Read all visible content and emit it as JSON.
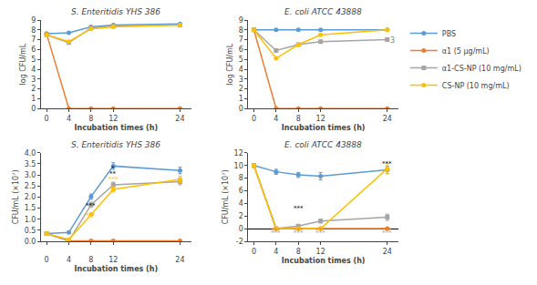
{
  "chart_data": [
    {
      "type": "line",
      "title": "S. Enteritidis YHS 386",
      "xlabel": "Incubation times (h)",
      "ylabel": "log CFU/mL",
      "x": [
        0,
        4,
        8,
        12,
        24
      ],
      "xlim": [
        -1,
        26
      ],
      "xticks": [
        0,
        4,
        8,
        12,
        24
      ],
      "ylim": [
        0,
        9
      ],
      "yticks": [
        0,
        1,
        2,
        3,
        4,
        5,
        6,
        7,
        8,
        9
      ],
      "grid": false,
      "series": [
        {
          "name": "PBS",
          "color": "#5B9BD5",
          "marker": "circle",
          "values": [
            7.6,
            7.7,
            8.3,
            8.5,
            8.6
          ]
        },
        {
          "name": "α1 (5 μg/mL)",
          "color": "#ED7D31",
          "marker": "circle",
          "values": [
            7.6,
            0.0,
            0.0,
            0.0,
            0.0
          ]
        },
        {
          "name": "α1-CS-NP (10 mg/mL)",
          "color": "#A5A5A5",
          "marker": "square",
          "values": [
            7.5,
            6.7,
            8.2,
            8.4,
            8.5
          ]
        },
        {
          "name": "CS-NP (10 mg/mL)",
          "color": "#FFC000",
          "marker": "circle",
          "values": [
            7.5,
            6.8,
            8.1,
            8.3,
            8.5
          ]
        }
      ]
    },
    {
      "type": "line",
      "title": "E. coli ATCC 43888",
      "xlabel": "Incubation times (h)",
      "ylabel": "log CFU/mL",
      "x": [
        0,
        4,
        8,
        12,
        24
      ],
      "xlim": [
        -1,
        26
      ],
      "xticks": [
        0,
        4,
        8,
        12,
        24
      ],
      "ylim": [
        0,
        9
      ],
      "yticks": [
        0,
        1,
        2,
        3,
        4,
        5,
        6,
        7,
        8,
        9
      ],
      "grid": false,
      "legend": "right",
      "series": [
        {
          "name": "PBS",
          "color": "#5B9BD5",
          "marker": "circle",
          "values": [
            8.0,
            8.0,
            8.0,
            8.0,
            8.0
          ]
        },
        {
          "name": "α1 (5 μg/mL)",
          "color": "#ED7D31",
          "marker": "circle",
          "values": [
            8.0,
            0.0,
            0.0,
            0.0,
            0.0
          ]
        },
        {
          "name": "α1-CS-NP (10 mg/mL)",
          "color": "#A5A5A5",
          "marker": "square",
          "values": [
            8.0,
            5.9,
            6.5,
            6.8,
            7.0
          ]
        },
        {
          "name": "CS-NP (10 mg/mL)",
          "color": "#FFC000",
          "marker": "circle",
          "values": [
            8.0,
            5.1,
            6.5,
            7.5,
            8.0
          ]
        }
      ],
      "annotations": [
        {
          "text": "3",
          "x": 24.2,
          "y": 6.9,
          "color": "gray"
        }
      ]
    },
    {
      "type": "line",
      "title": "S. Enteritidis YHS 386",
      "xlabel": "Incubation times (h)",
      "ylabel": "CFU/mL (×10⁷)",
      "x": [
        0,
        4,
        8,
        12,
        24
      ],
      "xlim": [
        -1,
        26
      ],
      "xticks": [
        0,
        4,
        8,
        12,
        24
      ],
      "ylim": [
        0,
        4.0
      ],
      "yticks": [
        {
          "value": 0,
          "label": "0.0"
        },
        0.5,
        {
          "value": 1.0,
          "label": "1.0"
        },
        1.5,
        {
          "value": 2.0,
          "label": "2.0"
        },
        2.5,
        {
          "value": 3.0,
          "label": "3.0"
        },
        3.5,
        {
          "value": 4.0,
          "label": "4.0"
        }
      ],
      "grid": false,
      "series": [
        {
          "name": "PBS",
          "color": "#5B9BD5",
          "marker": "circle",
          "values": [
            0.35,
            0.4,
            2.02,
            3.4,
            3.2
          ],
          "errors": [
            0.04,
            0.05,
            0.12,
            0.15,
            0.15
          ]
        },
        {
          "name": "α1 (5 μg/mL)",
          "color": "#ED7D31",
          "marker": "circle",
          "values": [
            0.35,
            0.02,
            0.02,
            0.02,
            0.02
          ],
          "errors": [
            0.04,
            0.005,
            0.005,
            0.005,
            0.005
          ]
        },
        {
          "name": "α1-CS-NP (10 mg/mL)",
          "color": "#A5A5A5",
          "marker": "square",
          "values": [
            0.35,
            0.02,
            1.65,
            2.55,
            2.7
          ],
          "errors": [
            0.04,
            0.005,
            0.12,
            0.12,
            0.15
          ]
        },
        {
          "name": "CS-NP (10 mg/mL)",
          "color": "#FFC000",
          "marker": "circle",
          "values": [
            0.35,
            0.08,
            1.2,
            2.35,
            2.8
          ],
          "errors": [
            0.04,
            0.01,
            0.08,
            0.12,
            0.15
          ]
        }
      ],
      "significance": [
        {
          "x": 4,
          "text": "***",
          "y": -0.32,
          "color": "#ED7D31"
        },
        {
          "x": 8,
          "text": "***",
          "y": 1.38,
          "color": "black"
        },
        {
          "x": 8,
          "text": "***",
          "y": 0.93,
          "color": "#FFC000"
        },
        {
          "x": 12,
          "text": "***",
          "y": -0.32,
          "color": "#ED7D31"
        },
        {
          "x": 12,
          "text": "*",
          "y": 3.1,
          "color": "black"
        },
        {
          "x": 12,
          "text": "**",
          "y": 2.85,
          "color": "black"
        },
        {
          "x": 12,
          "text": "***",
          "y": 2.6,
          "color": "#FFC000"
        },
        {
          "x": 24,
          "text": "***",
          "y": -0.32,
          "color": "#ED7D31"
        }
      ]
    },
    {
      "type": "line",
      "title": "E. coli ATCC 43888",
      "xlabel": "Incubation times (h)",
      "ylabel": "CFU/mL (×10⁷)",
      "x": [
        0,
        4,
        8,
        12,
        24
      ],
      "xlim": [
        -1,
        26
      ],
      "xticks": [
        0,
        4,
        8,
        12,
        24
      ],
      "ylim": [
        -2,
        12
      ],
      "yticks": [
        -2,
        0,
        2,
        4,
        6,
        8,
        10,
        12
      ],
      "grid": false,
      "series": [
        {
          "name": "PBS",
          "color": "#5B9BD5",
          "marker": "circle",
          "values": [
            10.0,
            9.0,
            8.5,
            8.3,
            9.3
          ],
          "errors": [
            0.3,
            0.4,
            0.4,
            0.6,
            0.6
          ]
        },
        {
          "name": "α1 (5 μg/mL)",
          "color": "#ED7D31",
          "marker": "circle",
          "values": [
            10.0,
            0.0,
            0.0,
            0.0,
            0.0
          ],
          "errors": [
            0.3,
            0.01,
            0.01,
            0.01,
            0.01
          ]
        },
        {
          "name": "α1-CS-NP (10 mg/mL)",
          "color": "#A5A5A5",
          "marker": "square",
          "values": [
            10.0,
            0.0,
            0.4,
            1.2,
            1.8
          ],
          "errors": [
            0.3,
            0.01,
            0.15,
            0.3,
            0.5
          ]
        },
        {
          "name": "CS-NP (10 mg/mL)",
          "color": "#FFC000",
          "marker": "circle",
          "values": [
            10.0,
            0.0,
            0.0,
            0.0,
            9.5
          ],
          "errors": [
            0.3,
            0.01,
            0.01,
            0.01,
            0.8
          ]
        }
      ],
      "significance": [
        {
          "x": 4,
          "text": "***",
          "y": -0.96,
          "color": "#ED7D31"
        },
        {
          "x": 4,
          "text": "***",
          "y": -1.44,
          "color": "#A5A5A5"
        },
        {
          "x": 8,
          "text": "***",
          "y": 2.4,
          "color": "black"
        },
        {
          "x": 8,
          "text": "***",
          "y": -0.96,
          "color": "#ED7D31"
        },
        {
          "x": 8,
          "text": "***",
          "y": -1.44,
          "color": "#A5A5A5"
        },
        {
          "x": 12,
          "text": "***",
          "y": -0.96,
          "color": "#ED7D31"
        },
        {
          "x": 12,
          "text": "***",
          "y": -1.44,
          "color": "#A5A5A5"
        },
        {
          "x": 24,
          "text": "***",
          "y": 9.5,
          "color": "black"
        },
        {
          "x": 24,
          "text": "***",
          "y": -0.96,
          "color": "#ED7D31"
        },
        {
          "x": 24,
          "text": "***",
          "y": -1.44,
          "color": "#A5A5A5"
        }
      ]
    }
  ]
}
